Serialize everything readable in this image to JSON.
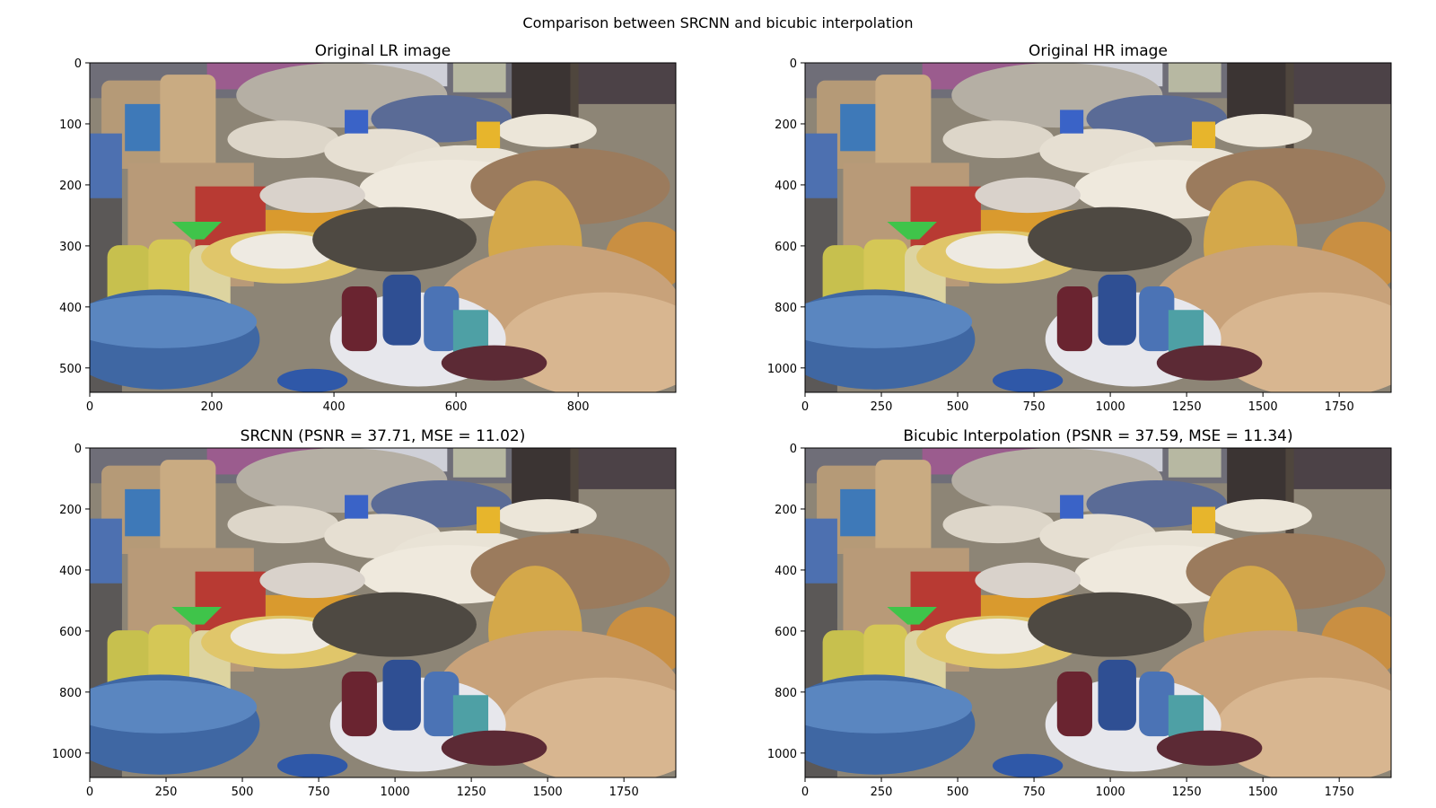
{
  "figure": {
    "suptitle": "Comparison between SRCNN and bicubic interpolation"
  },
  "chart_data": [
    {
      "type": "image",
      "title": "Original LR image",
      "xlim": [
        0,
        960
      ],
      "ylim": [
        540,
        0
      ],
      "xticks": [
        0,
        200,
        400,
        600,
        800
      ],
      "yticks": [
        0,
        100,
        200,
        300,
        400,
        500
      ],
      "image_content": "outdoor market stall with bowls of rice, jars, cooking oil bottles, potatoes and onions"
    },
    {
      "type": "image",
      "title": "Original HR image",
      "xlim": [
        0,
        1920
      ],
      "ylim": [
        1080,
        0
      ],
      "xticks": [
        0,
        250,
        500,
        750,
        1000,
        1250,
        1500,
        1750
      ],
      "yticks": [
        0,
        200,
        400,
        600,
        800,
        1000
      ],
      "image_content": "outdoor market stall with bowls of rice, jars, cooking oil bottles, potatoes and onions"
    },
    {
      "type": "image",
      "title": "SRCNN (PSNR = 37.71, MSE = 11.02)",
      "psnr": 37.71,
      "mse": 11.02,
      "xlim": [
        0,
        1920
      ],
      "ylim": [
        1080,
        0
      ],
      "xticks": [
        0,
        250,
        500,
        750,
        1000,
        1250,
        1500,
        1750
      ],
      "yticks": [
        0,
        200,
        400,
        600,
        800,
        1000
      ],
      "image_content": "outdoor market stall with bowls of rice, jars, cooking oil bottles, potatoes and onions"
    },
    {
      "type": "image",
      "title": "Bicubic Interpolation (PSNR = 37.59, MSE = 11.34)",
      "psnr": 37.59,
      "mse": 11.34,
      "xlim": [
        0,
        1920
      ],
      "ylim": [
        1080,
        0
      ],
      "xticks": [
        0,
        250,
        500,
        750,
        1000,
        1250,
        1500,
        1750
      ],
      "yticks": [
        0,
        200,
        400,
        600,
        800,
        1000
      ],
      "image_content": "outdoor market stall with bowls of rice, jars, cooking oil bottles, potatoes and onions"
    }
  ]
}
